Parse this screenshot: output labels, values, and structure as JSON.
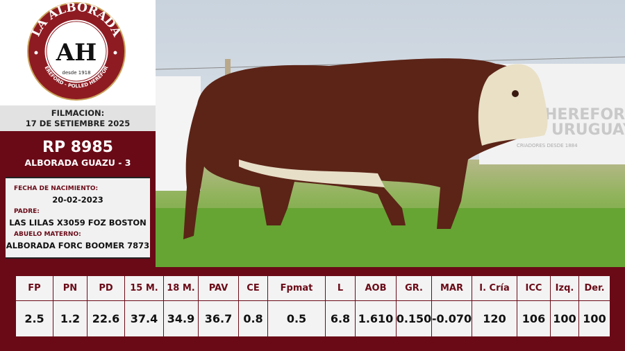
{
  "logo": {
    "brand": "LA ALBORADA",
    "monogram": "AH",
    "since": "desde 1918",
    "tagline": "HEREFORD - POLLED HEREFORD"
  },
  "filmacion": {
    "label": "FILMACION:",
    "date": "17 DE SETIEMBRE 2025"
  },
  "animal": {
    "rp": "RP 8985",
    "name": "ALBORADA GUAZU - 3"
  },
  "info": {
    "birth_label": "FECHA DE NACIMIENTO:",
    "birth_value": "20-02-2023",
    "sire_label": "PADRE:",
    "sire_value": "LAS LILAS X3059 FOZ BOSTON",
    "mgs_label": "ABUELO MATERNO:",
    "mgs_value": "ALBORADA FORC BOOMER 7873"
  },
  "photo": {
    "banner_line1": "HEREFORD",
    "banner_line2": "URUGUAY",
    "banner_line3": "CRIADORES DESDE 1884"
  },
  "table": {
    "headers": [
      "FP",
      "PN",
      "PD",
      "15 M.",
      "18 M.",
      "PAV",
      "CE",
      "Fpmat",
      "L",
      "AOB",
      "GR.",
      "MAR",
      "I. Cría",
      "ICC",
      "Izq.",
      "Der."
    ],
    "values": [
      "2.5",
      "1.2",
      "22.6",
      "37.4",
      "34.9",
      "36.7",
      "0.8",
      "0.5",
      "6.8",
      "1.610",
      "0.150",
      "-0.070",
      "120",
      "106",
      "100",
      "100"
    ]
  },
  "colors": {
    "brand": "#6a0a17",
    "panel": "#f1f1f1"
  }
}
